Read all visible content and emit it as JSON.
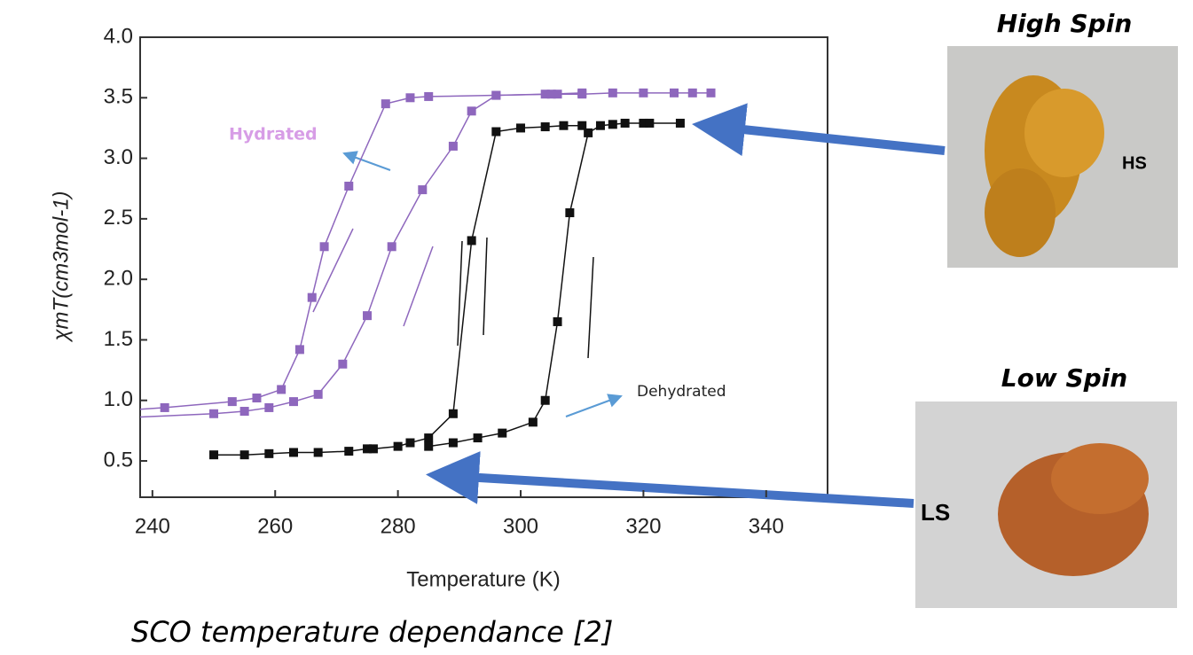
{
  "chart_data": {
    "type": "line",
    "x_label": "Temperature (K)",
    "y_label": "χmT(cm3mol-1)",
    "annotations": [
      "Hydrated",
      "Dehydrated"
    ],
    "annotation_colors": [
      "#d79de6",
      "#222222"
    ],
    "xlim": [
      238,
      350
    ],
    "xticks": [
      240,
      260,
      280,
      300,
      320,
      340
    ],
    "ylim": [
      0.2,
      4.0
    ],
    "yticks": [
      0.5,
      {
        "value": 1,
        "label": "1.0"
      },
      1.5,
      {
        "value": 2,
        "label": "2.0"
      },
      2.5,
      {
        "value": 3,
        "label": "3.0"
      },
      3.5,
      {
        "value": 4,
        "label": "4.0"
      }
    ],
    "series": [
      {
        "color": "#8e67bd",
        "x": [
          236,
          242,
          253,
          257,
          261,
          264,
          266,
          268,
          272,
          278,
          282,
          285,
          296,
          304,
          306,
          310,
          315,
          320,
          325,
          328,
          331
        ],
        "values": [
          0.92,
          0.94,
          0.99,
          1.02,
          1.09,
          1.42,
          1.85,
          2.27,
          2.77,
          3.45,
          3.5,
          3.51,
          3.52,
          3.53,
          3.53,
          3.53,
          3.54,
          3.54,
          3.54,
          3.54,
          3.54
        ]
      },
      {
        "color": "#8e67bd",
        "x": [
          237,
          250,
          255,
          259,
          263,
          267,
          271,
          275,
          279,
          284,
          289,
          292,
          296,
          305,
          310
        ],
        "values": [
          0.86,
          0.89,
          0.91,
          0.94,
          0.99,
          1.05,
          1.3,
          1.7,
          2.27,
          2.74,
          3.1,
          3.39,
          3.52,
          3.53,
          3.54
        ]
      },
      {
        "color": "#111111",
        "x": [
          250,
          255,
          259,
          263,
          267,
          272,
          275,
          276,
          280,
          282,
          285,
          289,
          292,
          296,
          300,
          304,
          307,
          310
        ],
        "values": [
          0.55,
          0.55,
          0.56,
          0.57,
          0.57,
          0.58,
          0.6,
          0.6,
          0.62,
          0.65,
          0.69,
          0.89,
          2.32,
          3.22,
          3.25,
          3.26,
          3.27,
          3.27
        ]
      },
      {
        "color": "#111111",
        "x": [
          285,
          289,
          293,
          297,
          302,
          304,
          306,
          308,
          311,
          313,
          315,
          317,
          320,
          321,
          326
        ],
        "values": [
          0.62,
          0.65,
          0.69,
          0.73,
          0.82,
          1.0,
          1.65,
          2.55,
          3.21,
          3.27,
          3.28,
          3.29,
          3.29,
          3.29,
          3.29
        ]
      }
    ]
  },
  "caption": "SCO  temperature dependance [2]",
  "photos": [
    {
      "title": "High Spin",
      "label": "HS"
    },
    {
      "title": "Low Spin",
      "label": "LS"
    }
  ]
}
